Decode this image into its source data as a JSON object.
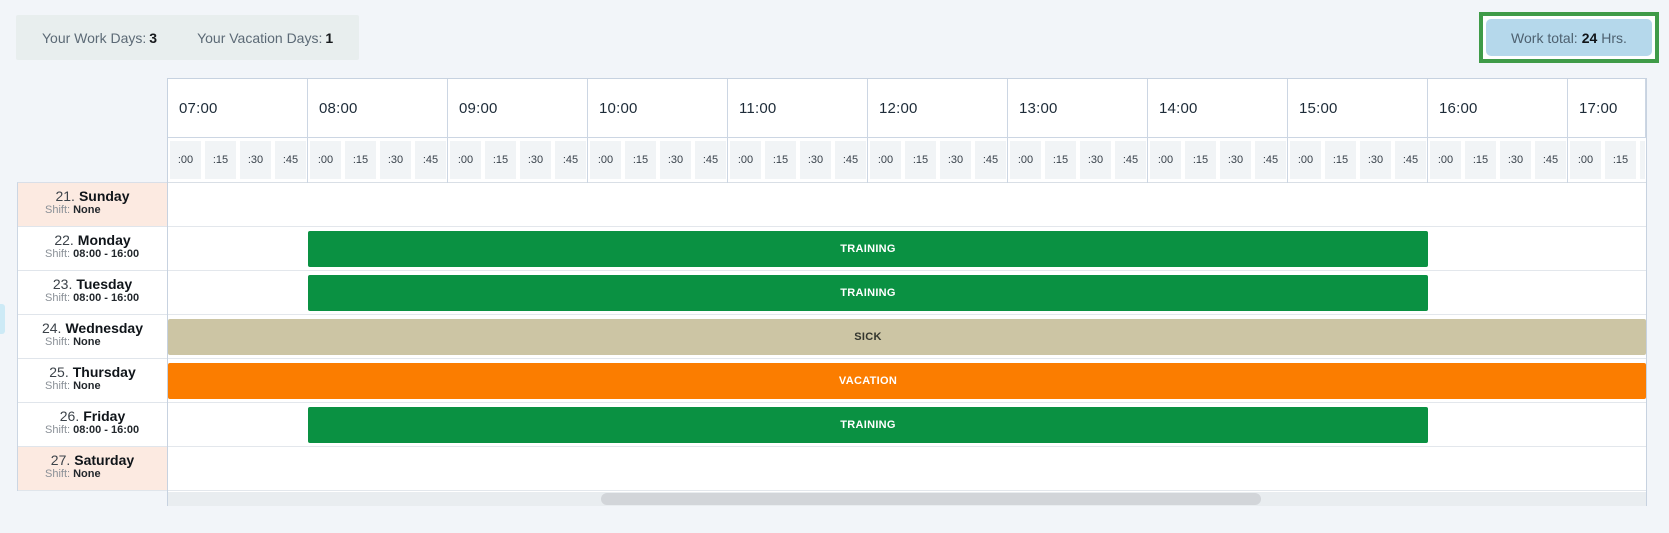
{
  "summary": {
    "work_days_label": "Your Work Days:",
    "work_days_value": "3",
    "vacation_days_label": "Your Vacation Days:",
    "vacation_days_value": "1"
  },
  "work_total": {
    "label": "Work total:",
    "value": "24",
    "unit": "Hrs."
  },
  "labels": {
    "shift": "Shift:"
  },
  "timeline": {
    "hours": [
      "07:00",
      "08:00",
      "09:00",
      "10:00",
      "11:00",
      "12:00",
      "13:00",
      "14:00",
      "15:00",
      "16:00",
      "17:00"
    ],
    "quarters": [
      ":00",
      ":15",
      ":30",
      ":45"
    ]
  },
  "days": [
    {
      "number": "21.",
      "name": "Sunday",
      "shift": "None",
      "weekend": true,
      "event": null
    },
    {
      "number": "22.",
      "name": "Monday",
      "shift": "08:00 - 16:00",
      "weekend": false,
      "event": {
        "label": "TRAINING",
        "type": "training",
        "start": "08:00",
        "end": "16:00"
      }
    },
    {
      "number": "23.",
      "name": "Tuesday",
      "shift": "08:00 - 16:00",
      "weekend": false,
      "event": {
        "label": "TRAINING",
        "type": "training",
        "start": "08:00",
        "end": "16:00"
      }
    },
    {
      "number": "24.",
      "name": "Wednesday",
      "shift": "None",
      "weekend": false,
      "event": {
        "label": "SICK",
        "type": "sick",
        "full_width": true
      }
    },
    {
      "number": "25.",
      "name": "Thursday",
      "shift": "None",
      "weekend": false,
      "event": {
        "label": "VACATION",
        "type": "vacation",
        "full_width": true
      }
    },
    {
      "number": "26.",
      "name": "Friday",
      "shift": "08:00 - 16:00",
      "weekend": false,
      "event": {
        "label": "TRAINING",
        "type": "training",
        "start": "08:00",
        "end": "16:00"
      }
    },
    {
      "number": "27.",
      "name": "Saturday",
      "shift": "None",
      "weekend": true,
      "event": null
    }
  ],
  "colors": {
    "training": "#0a9142",
    "training_text": "#ffffff",
    "sick": "#ccc5a4",
    "sick_text": "#33362e",
    "vacation": "#fb7d00",
    "vacation_text": "#ffffff",
    "weekend_bg": "#fceae1",
    "accent_border": "#3f9b48",
    "work_total_bg": "#b5d8eb"
  }
}
